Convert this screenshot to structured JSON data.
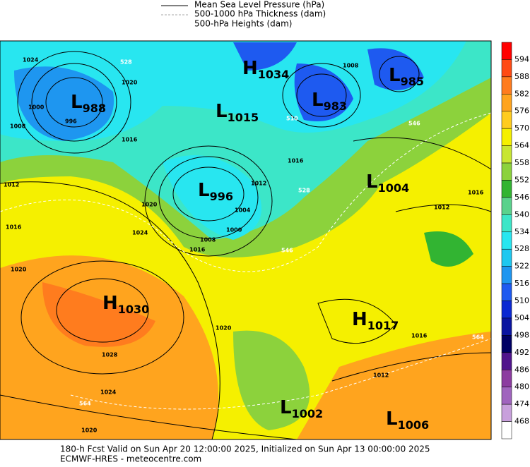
{
  "legend": [
    "Mean Sea Level Pressure (hPa)",
    "500-1000 hPa Thickness (dam)",
    "500-hPa Heights (dam)"
  ],
  "centers": [
    {
      "letter": "L",
      "value": 988
    },
    {
      "letter": "H",
      "value": 1034
    },
    {
      "letter": "L",
      "value": 1015
    },
    {
      "letter": "L",
      "value": 983
    },
    {
      "letter": "L",
      "value": 985
    },
    {
      "letter": "L",
      "value": 996
    },
    {
      "letter": "L",
      "value": 1004
    },
    {
      "letter": "H",
      "value": 1030
    },
    {
      "letter": "H",
      "value": 1017
    },
    {
      "letter": "L",
      "value": 1002
    },
    {
      "letter": "L",
      "value": 1006
    }
  ],
  "isobar_labels": [
    1024,
    1020,
    1016,
    1012,
    1016,
    1020,
    1024,
    1020,
    1008,
    1000,
    1004,
    1012,
    1016,
    1016,
    1020,
    1028,
    1024,
    1020,
    1016,
    1012,
    1008,
    1012,
    1016,
    996,
    1008,
    1000
  ],
  "thickness_labels": [
    546,
    510,
    528,
    546,
    564,
    564,
    528
  ],
  "colorbar": {
    "labels": [
      594,
      588,
      582,
      576,
      570,
      564,
      558,
      552,
      546,
      540,
      534,
      528,
      522,
      516,
      510,
      504,
      498,
      492,
      486,
      480,
      474,
      468
    ],
    "colors": [
      "#ff0000",
      "#ff4a14",
      "#ff7c1e",
      "#ffa41e",
      "#ffcc1e",
      "#f5f000",
      "#c8e632",
      "#8cd23c",
      "#32b432",
      "#5ad28c",
      "#3ce6c8",
      "#28e6f0",
      "#1ec8f0",
      "#1e96f0",
      "#1e5af0",
      "#0a28d2",
      "#0a14a0",
      "#000064",
      "#50148c",
      "#8c3ca0",
      "#a064be",
      "#c8a0dc",
      "#ffffff"
    ]
  },
  "footer": [
    "180-h Fcst Valid on Sun Apr 20 12:00:00 2025, Initialized on Sun Apr 13 00:00:00 2025",
    "ECMWF-HRES  - meteocentre.com"
  ]
}
